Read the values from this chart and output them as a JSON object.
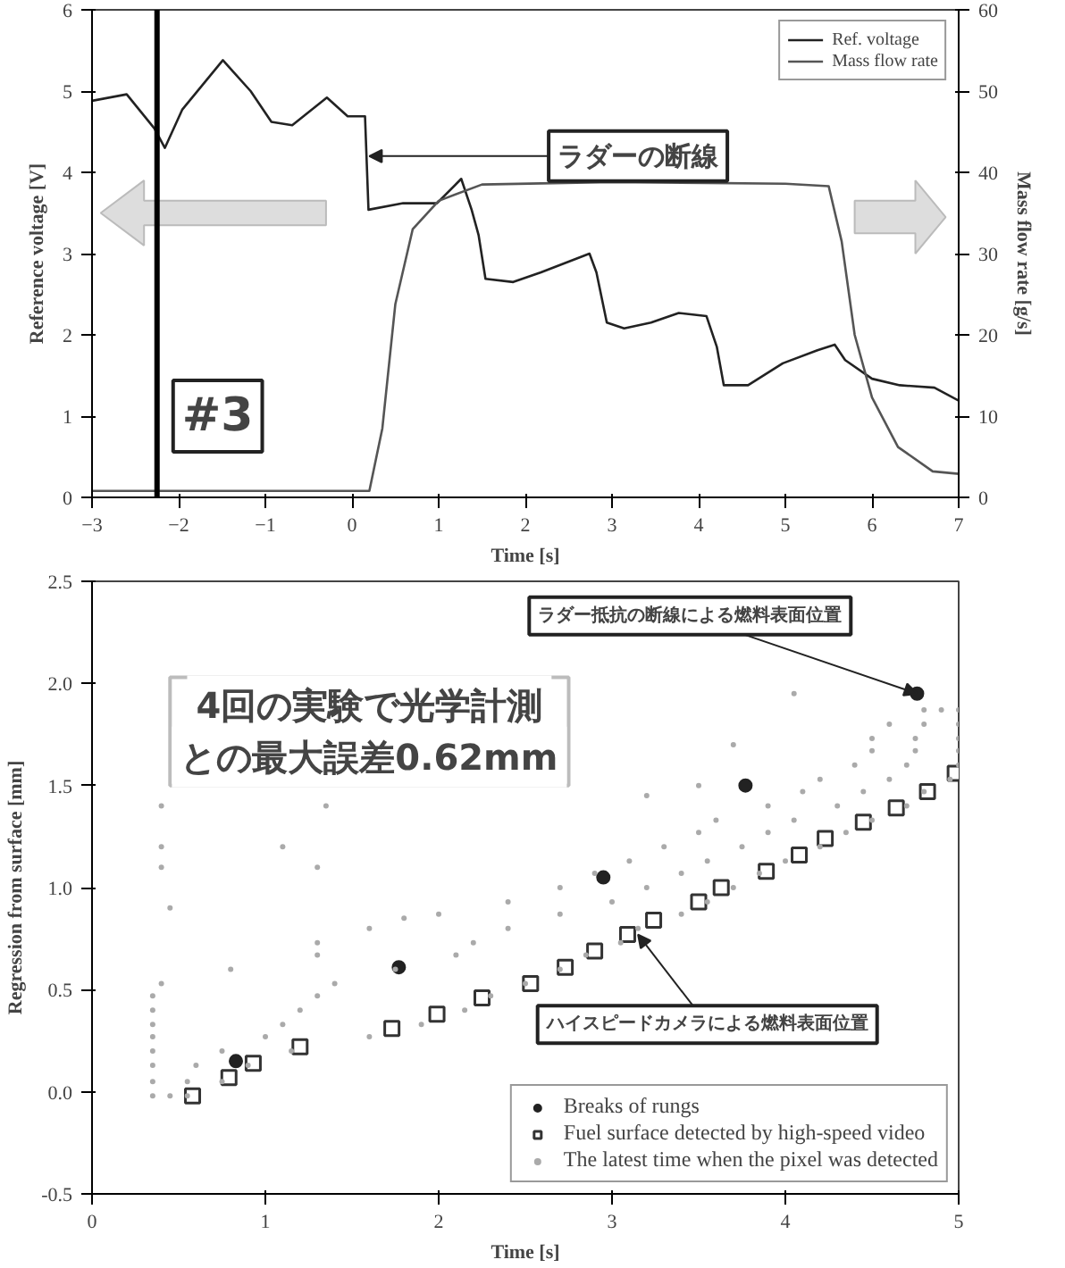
{
  "chart_data": [
    {
      "type": "line",
      "xlabel": "Time [s]",
      "ylabel": "Reference voltage [V]",
      "y2label": "Mass flow rate [g/s]",
      "xlim": [
        -3,
        7
      ],
      "xticks": [
        -3,
        -2,
        -1,
        0,
        1,
        2,
        3,
        4,
        5,
        6,
        7
      ],
      "ylim": [
        0,
        6
      ],
      "yticks": [
        0,
        1,
        2,
        3,
        4,
        5,
        6
      ],
      "y2lim": [
        0,
        60
      ],
      "y2ticks": [
        0,
        10,
        20,
        30,
        40,
        50,
        60
      ],
      "grid": false,
      "legend": "top right",
      "series": [
        {
          "name": "Ref. voltage",
          "color": "#222222",
          "x": [
            -3,
            -2.6,
            -2.28,
            -2.16,
            -1.96,
            -1.49,
            -1.17,
            -0.93,
            -0.69,
            -0.29,
            -0.05,
            0.15,
            0.19,
            0.59,
            0.98,
            1.26,
            1.38,
            1.46,
            1.54,
            1.86,
            2.18,
            2.74,
            2.82,
            2.94,
            3.14,
            3.45,
            3.77,
            4.09,
            4.21,
            4.29,
            4.57,
            4.97,
            5.37,
            5.57,
            5.69,
            6.0,
            6.32,
            6.72,
            7.0
          ],
          "values": [
            4.88,
            4.96,
            4.54,
            4.3,
            4.77,
            5.38,
            5.0,
            4.62,
            4.58,
            4.92,
            4.69,
            4.69,
            3.54,
            3.62,
            3.62,
            3.92,
            3.54,
            3.23,
            2.69,
            2.65,
            2.77,
            3.0,
            2.77,
            2.15,
            2.08,
            2.15,
            2.27,
            2.23,
            1.85,
            1.38,
            1.38,
            1.65,
            1.81,
            1.88,
            1.69,
            1.46,
            1.38,
            1.35,
            1.19
          ]
        },
        {
          "name": "Mass flow rate",
          "color": "#555555",
          "axis": "y2",
          "x": [
            -3,
            0.2,
            0.35,
            0.5,
            0.7,
            1.0,
            1.5,
            3,
            5,
            5.5,
            5.65,
            5.8,
            6.0,
            6.3,
            6.7,
            7
          ],
          "values": [
            0.8,
            0.8,
            8.5,
            23.8,
            33,
            36.5,
            38.5,
            38.8,
            38.6,
            38.3,
            31.5,
            20,
            12.3,
            6.2,
            3.2,
            2.9
          ]
        }
      ],
      "ref_lines": [
        {
          "axis": "x",
          "value": -2.25,
          "color": "#000000"
        }
      ],
      "annotations": [
        {
          "text": "ラダーの断線",
          "x": 0.2,
          "y": 4.2
        },
        "#3"
      ]
    },
    {
      "type": "scatter",
      "xlabel": "Time [s]",
      "ylabel": "Regression from surface [mm]",
      "xlim": [
        0,
        5
      ],
      "xticks": [
        0,
        1,
        2,
        3,
        4,
        5
      ],
      "ylim": [
        -0.5,
        2.5
      ],
      "yticks": [
        {
          "value": -0.5,
          "label": "-0.5"
        },
        {
          "value": 0,
          "label": "0.0"
        },
        {
          "value": 0.5,
          "label": "0.5"
        },
        {
          "value": 1,
          "label": "1.0"
        },
        {
          "value": 1.5,
          "label": "1.5"
        },
        {
          "value": 2,
          "label": "2.0"
        },
        {
          "value": 2.5,
          "label": "2.5"
        }
      ],
      "grid": false,
      "legend": "bottom right",
      "series": [
        {
          "name": "Breaks of rungs",
          "color": "#222222",
          "marker": "circle",
          "x": [
            0.83,
            1.77,
            2.95,
            3.77,
            4.76
          ],
          "values": [
            0.15,
            0.61,
            1.05,
            1.5,
            1.95
          ]
        },
        {
          "name": "Fuel surface detected by high-speed video",
          "color": "#333333",
          "marker": "square",
          "x": [
            0.58,
            0.79,
            0.93,
            1.2,
            1.73,
            1.99,
            2.25,
            2.53,
            2.73,
            2.9,
            3.09,
            3.24,
            3.5,
            3.63,
            3.89,
            4.08,
            4.23,
            4.45,
            4.64,
            4.82,
            4.98
          ],
          "values": [
            -0.02,
            0.07,
            0.14,
            0.22,
            0.31,
            0.38,
            0.46,
            0.53,
            0.61,
            0.69,
            0.77,
            0.84,
            0.93,
            1.0,
            1.08,
            1.16,
            1.24,
            1.32,
            1.39,
            1.47,
            1.56
          ]
        },
        {
          "name": "The latest time when the pixel was detected",
          "color": "#aaaaaa",
          "marker": "dot",
          "x": [
            0.35,
            0.45,
            0.55,
            0.35,
            0.55,
            0.75,
            0.35,
            0.6,
            0.9,
            0.35,
            0.75,
            1.15,
            0.35,
            1.0,
            1.6,
            0.35,
            1.1,
            1.9,
            0.35,
            1.2,
            2.15,
            0.35,
            1.3,
            2.3,
            0.4,
            1.4,
            2.5,
            0.8,
            1.75,
            2.7,
            1.3,
            2.1,
            2.85,
            1.3,
            2.2,
            3.05,
            1.6,
            2.4,
            3.15,
            2.0,
            2.7,
            3.4,
            2.4,
            3.0,
            3.55,
            2.7,
            3.2,
            3.7,
            2.9,
            3.4,
            3.85,
            3.1,
            3.55,
            4.0,
            3.3,
            3.75,
            4.2,
            3.5,
            3.9,
            4.35,
            3.6,
            4.05,
            4.5,
            3.9,
            4.3,
            4.7,
            4.1,
            4.45,
            4.8,
            4.2,
            4.6,
            4.95,
            4.4,
            4.7,
            5.0,
            4.5,
            4.75,
            5.0,
            4.5,
            4.75,
            5.0,
            4.6,
            4.8,
            5.0,
            4.8,
            4.9,
            5.0,
            0.4,
            0.4,
            0.4,
            0.45,
            1.1,
            1.3,
            1.35,
            1.8,
            3.7,
            4.05,
            3.5,
            3.2
          ],
          "values": [
            -0.02,
            -0.02,
            -0.02,
            0.05,
            0.05,
            0.05,
            0.13,
            0.13,
            0.13,
            0.2,
            0.2,
            0.2,
            0.27,
            0.27,
            0.27,
            0.33,
            0.33,
            0.33,
            0.4,
            0.4,
            0.4,
            0.47,
            0.47,
            0.47,
            0.53,
            0.53,
            0.53,
            0.6,
            0.6,
            0.6,
            0.67,
            0.67,
            0.67,
            0.73,
            0.73,
            0.73,
            0.8,
            0.8,
            0.8,
            0.87,
            0.87,
            0.87,
            0.93,
            0.93,
            0.93,
            1.0,
            1.0,
            1.0,
            1.07,
            1.07,
            1.07,
            1.13,
            1.13,
            1.13,
            1.2,
            1.2,
            1.2,
            1.27,
            1.27,
            1.27,
            1.33,
            1.33,
            1.33,
            1.4,
            1.4,
            1.4,
            1.47,
            1.47,
            1.47,
            1.53,
            1.53,
            1.53,
            1.6,
            1.6,
            1.6,
            1.67,
            1.67,
            1.67,
            1.73,
            1.73,
            1.73,
            1.8,
            1.8,
            1.8,
            1.87,
            1.87,
            1.87,
            1.4,
            1.2,
            1.1,
            0.9,
            1.2,
            1.1,
            1.4,
            0.85,
            1.7,
            1.95,
            1.5,
            1.45
          ]
        }
      ],
      "annotations": [
        {
          "text": "ラダー抵抗の断線による燃料表面位置",
          "x": 4.76,
          "y": 1.95
        },
        {
          "text": "ハイスピードカメラによる燃料表面位置",
          "x": 3.15,
          "y": 0.77
        },
        "4回の実験で光学計測",
        "との最大誤差0.62mm"
      ]
    }
  ]
}
